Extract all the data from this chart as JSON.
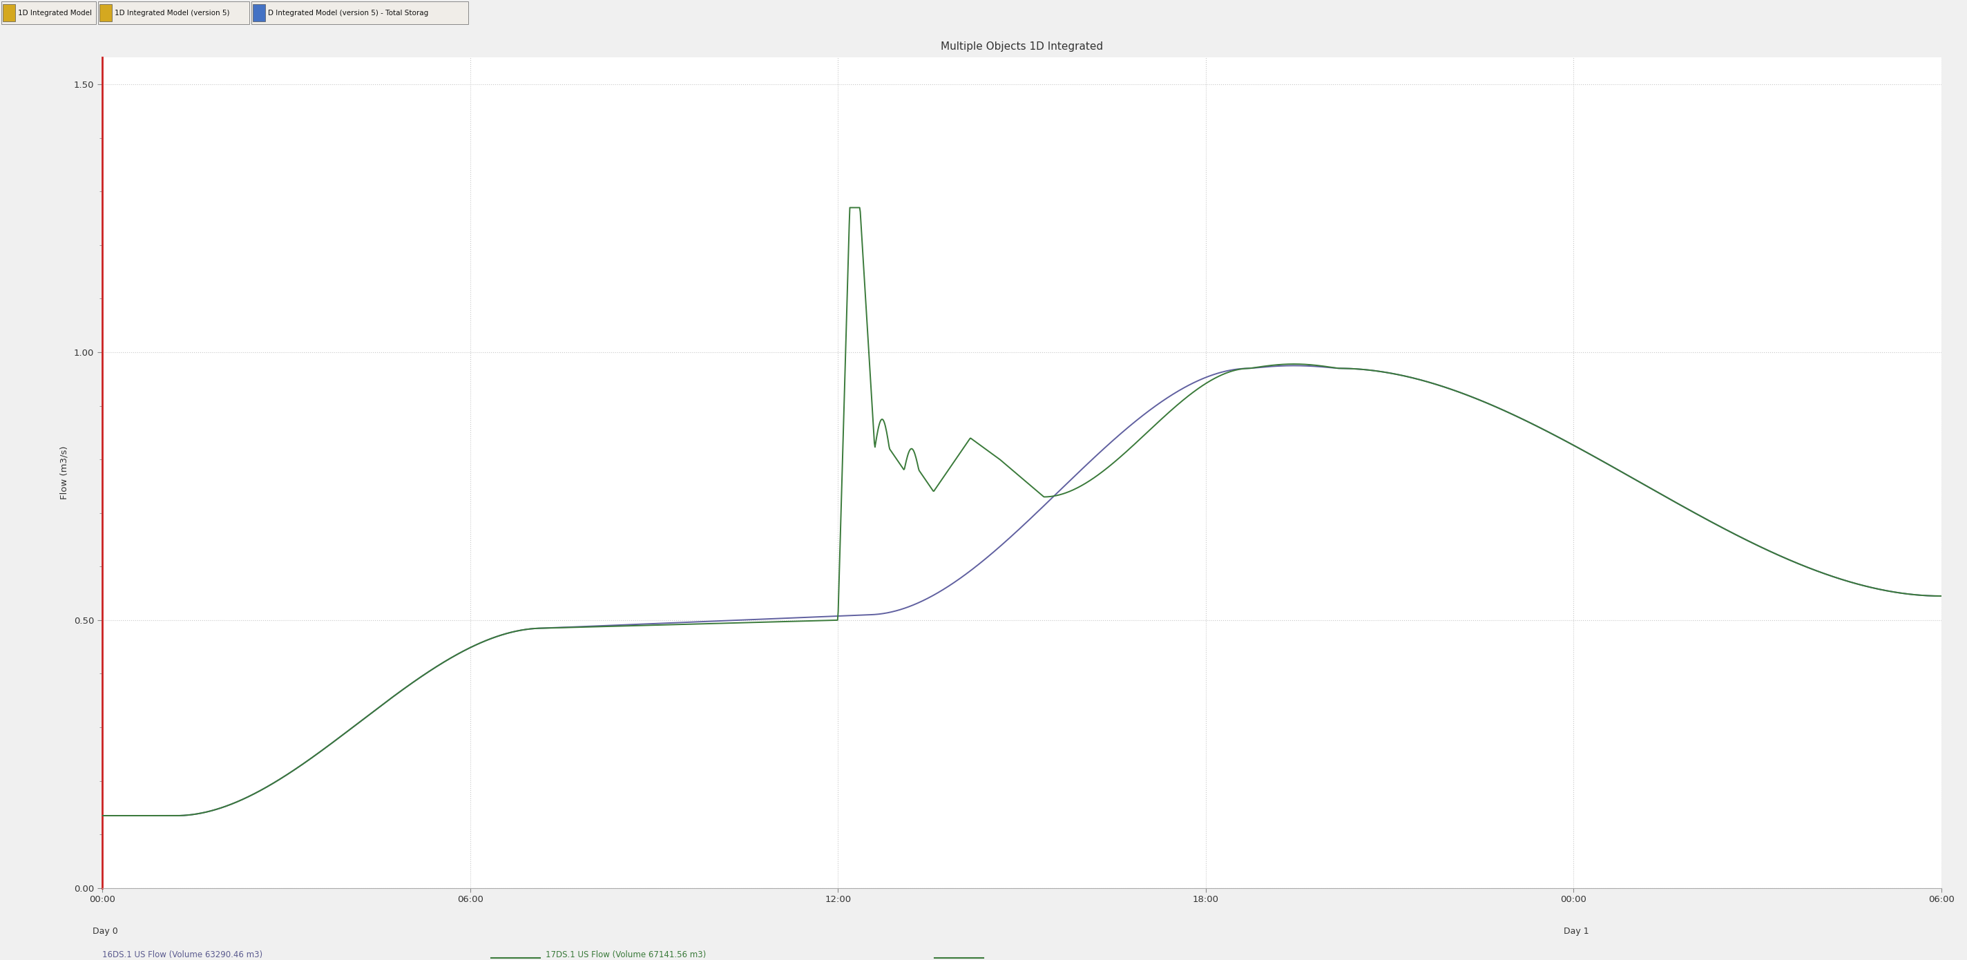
{
  "title": "Multiple Objects 1D Integrated",
  "ylabel": "Flow (m3/s)",
  "bg_color": "#f0f0f0",
  "plot_bg_color": "#ffffff",
  "grid_color": "#c8c8c8",
  "ylim": [
    0.0,
    1.55
  ],
  "yticks": [
    0.0,
    0.5,
    1.0,
    1.5
  ],
  "ytick_labels": [
    "0.00",
    "0.50",
    "1.00",
    "1.50"
  ],
  "xtick_positions": [
    0,
    0.25,
    0.5,
    0.75,
    1.0,
    1.25
  ],
  "xtick_labels": [
    "00:00",
    "06:00",
    "12:00",
    "18:00",
    "00:00",
    "06:00"
  ],
  "day0_label": "Day 0",
  "day1_label": "Day 1",
  "legend_items": [
    {
      "label": "16DS.1 US Flow (Volume 63290.46 m3)",
      "color": "#5b5b8f"
    },
    {
      "label": "17DS.1 US Flow (Volume 67141.56 m3)",
      "color": "#3a7a3a"
    }
  ],
  "line1_color": "#6060a0",
  "line2_color": "#3a7a3a",
  "tab_labels": [
    "1D Integrated Model",
    "1D Integrated Model (version 5)",
    "D Integrated Model (version 5) - Total Storag"
  ],
  "tab_bar_color": "#e8e8e0",
  "tab_border_color": "#a0a0a0"
}
